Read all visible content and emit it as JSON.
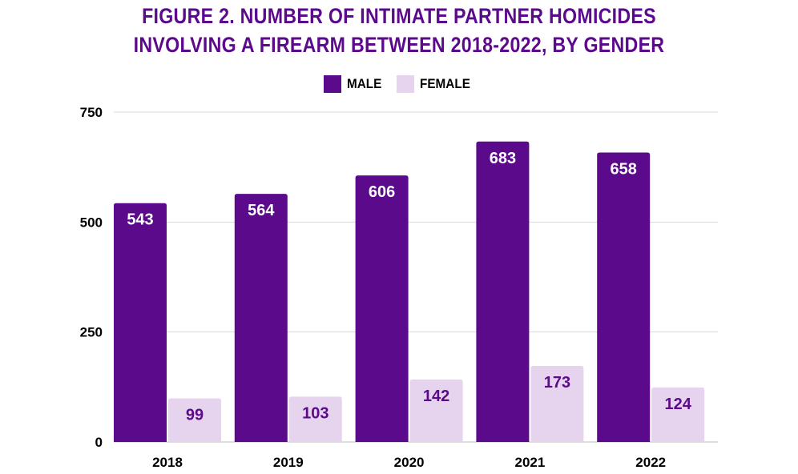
{
  "chart_data": {
    "type": "bar",
    "title_lines": [
      "FIGURE 2. NUMBER OF INTIMATE PARTNER HOMICIDES",
      "INVOLVING A FIREARM BETWEEN 2018-2022, BY GENDER"
    ],
    "xlabel": "",
    "ylabel": "",
    "categories": [
      "2018",
      "2019",
      "2020",
      "2021",
      "2022"
    ],
    "series": [
      {
        "name": "MALE",
        "values": [
          543,
          564,
          606,
          683,
          658
        ],
        "color": "#5c0a8c",
        "label_color": "#ffffff"
      },
      {
        "name": "FEMALE",
        "values": [
          99,
          103,
          142,
          173,
          124
        ],
        "color": "#e6d4ee",
        "label_color": "#5c0a8c"
      }
    ],
    "ylim": [
      0,
      750
    ],
    "yticks": [
      0,
      250,
      500,
      750
    ],
    "grid": true,
    "legend_position": "top-center",
    "data_labels": true
  }
}
